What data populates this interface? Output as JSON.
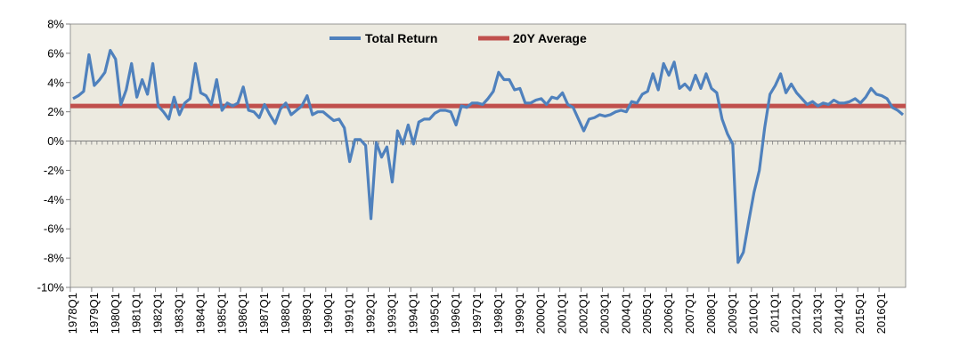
{
  "chart_data": {
    "type": "line",
    "colors": {
      "plot_background": "#ECEAE0",
      "total_return": "#4F81BD",
      "average": "#C0504D"
    },
    "ylim": [
      -10,
      8
    ],
    "y_ticks": [
      -10,
      -8,
      -6,
      -4,
      -2,
      0,
      2,
      4,
      6,
      8
    ],
    "y_tick_labels": [
      "-10%",
      "-8%",
      "-6%",
      "-4%",
      "-2%",
      "0%",
      "2%",
      "4%",
      "6%",
      "8%"
    ],
    "x_tick_labels": [
      "1978Q1",
      "1979Q1",
      "1980Q1",
      "1981Q1",
      "1982Q1",
      "1983Q1",
      "1984Q1",
      "1985Q1",
      "1986Q1",
      "1987Q1",
      "1988Q1",
      "1989Q1",
      "1990Q1",
      "1991Q1",
      "1992Q1",
      "1993Q1",
      "1994Q1",
      "1995Q1",
      "1996Q1",
      "1997Q1",
      "1998Q1",
      "1999Q1",
      "2000Q1",
      "2001Q1",
      "2002Q1",
      "2003Q1",
      "2004Q1",
      "2005Q1",
      "2006Q1",
      "2007Q1",
      "2008Q1",
      "2009Q1",
      "2010Q1",
      "2011Q1",
      "2012Q1",
      "2013Q1",
      "2014Q1",
      "2015Q1",
      "2016Q1"
    ],
    "legend_placement": "top-center",
    "grid": false,
    "series": [
      {
        "name": "Total Return",
        "values": [
          2.9,
          3.1,
          3.4,
          5.9,
          3.8,
          4.2,
          4.7,
          6.2,
          5.6,
          2.5,
          3.5,
          5.3,
          3.0,
          4.2,
          3.2,
          5.3,
          2.4,
          2.0,
          1.5,
          3.0,
          1.8,
          2.6,
          2.9,
          5.3,
          3.3,
          3.1,
          2.5,
          4.2,
          2.1,
          2.6,
          2.4,
          2.6,
          3.7,
          2.1,
          2.0,
          1.6,
          2.5,
          1.8,
          1.2,
          2.2,
          2.6,
          1.8,
          2.1,
          2.4,
          3.1,
          1.8,
          2.0,
          2.0,
          1.7,
          1.4,
          1.5,
          0.9,
          -1.4,
          0.1,
          0.1,
          -0.3,
          -5.3,
          -0.1,
          -1.1,
          -0.4,
          -2.8,
          0.7,
          -0.2,
          1.1,
          -0.2,
          1.3,
          1.5,
          1.5,
          1.9,
          2.1,
          2.1,
          2.0,
          1.1,
          2.4,
          2.3,
          2.6,
          2.6,
          2.5,
          2.9,
          3.4,
          4.7,
          4.2,
          4.2,
          3.5,
          3.6,
          2.6,
          2.6,
          2.8,
          2.9,
          2.5,
          3.0,
          2.9,
          3.3,
          2.5,
          2.3,
          1.5,
          0.7,
          1.5,
          1.6,
          1.8,
          1.7,
          1.8,
          2.0,
          2.1,
          2.0,
          2.7,
          2.6,
          3.2,
          3.4,
          4.6,
          3.5,
          5.3,
          4.5,
          5.4,
          3.6,
          3.9,
          3.5,
          4.5,
          3.6,
          4.6,
          3.6,
          3.3,
          1.5,
          0.5,
          -0.2,
          -8.3,
          -7.6,
          -5.5,
          -3.5,
          -2.0,
          0.9,
          3.2,
          3.8,
          4.6,
          3.3,
          3.9,
          3.3,
          2.9,
          2.5,
          2.7,
          2.4,
          2.6,
          2.5,
          2.8,
          2.6,
          2.6,
          2.7,
          2.9,
          2.6,
          3.0,
          3.6,
          3.2,
          3.1,
          2.9,
          2.3,
          2.1,
          1.8
        ]
      },
      {
        "name": "20Y Average",
        "values": [
          2.4
        ]
      }
    ]
  }
}
